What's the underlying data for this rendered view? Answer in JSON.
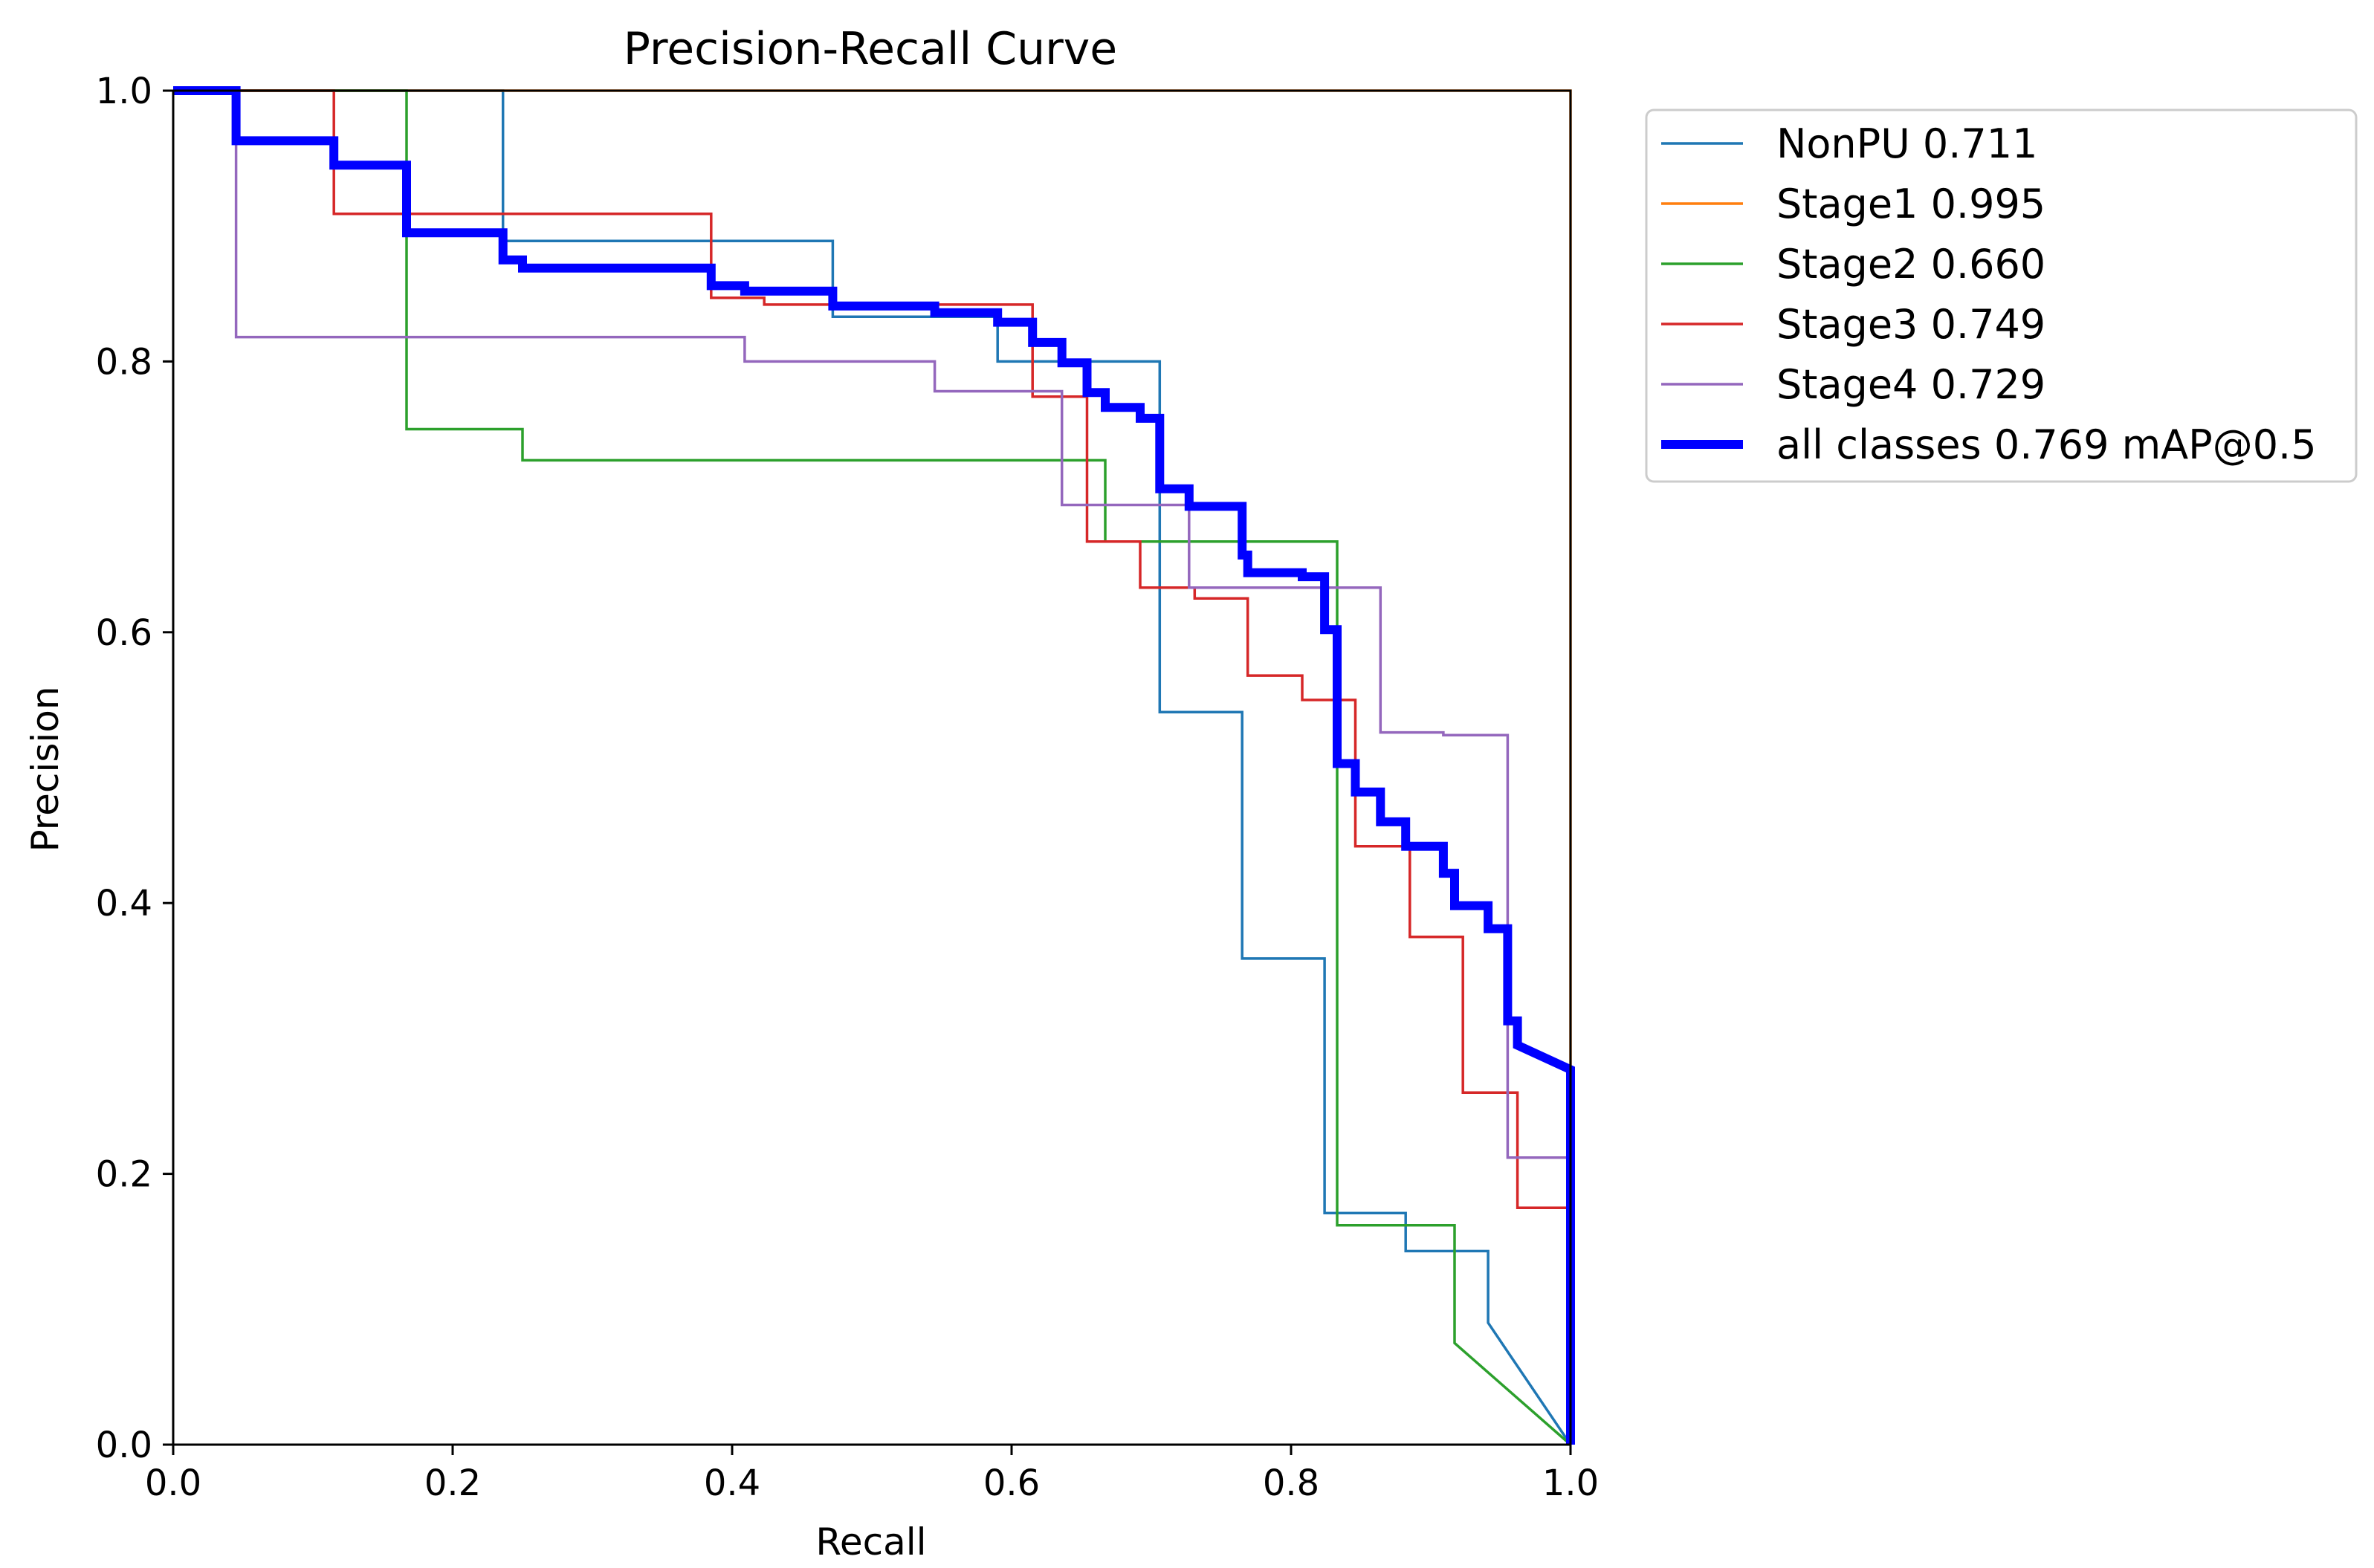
{
  "chart_data": {
    "type": "line",
    "title": "Precision-Recall Curve",
    "xlabel": "Recall",
    "ylabel": "Precision",
    "xlim": [
      0,
      1
    ],
    "ylim": [
      0,
      1
    ],
    "xticks": [
      "0.0",
      "0.2",
      "0.4",
      "0.6",
      "0.8",
      "1.0"
    ],
    "yticks": [
      "0.0",
      "0.2",
      "0.4",
      "0.6",
      "0.8",
      "1.0"
    ],
    "grid": false,
    "legend_position": "outside-top-right",
    "series": [
      {
        "name": "NonPU 0.711",
        "color": "#1f77b4",
        "width": "thin",
        "x": [
          0,
          0.236,
          0.236,
          0.236,
          0.472,
          0.472,
          0.59,
          0.59,
          0.706,
          0.706,
          0.765,
          0.765,
          0.824,
          0.824,
          0.882,
          0.882,
          0.941,
          0.941,
          1.0
        ],
        "y": [
          1.0,
          1.0,
          0.889,
          0.889,
          0.889,
          0.833,
          0.833,
          0.8,
          0.8,
          0.541,
          0.541,
          0.359,
          0.359,
          0.171,
          0.171,
          0.143,
          0.143,
          0.09,
          0.0
        ]
      },
      {
        "name": "Stage1 0.995",
        "color": "#ff7f0e",
        "width": "thin",
        "x": [
          0,
          1.0,
          1.0
        ],
        "y": [
          1.0,
          1.0,
          0.0
        ]
      },
      {
        "name": "Stage2 0.660",
        "color": "#2ca02c",
        "width": "thin",
        "x": [
          0,
          0.167,
          0.167,
          0.25,
          0.25,
          0.667,
          0.667,
          0.833,
          0.833,
          0.917,
          0.917,
          1.0
        ],
        "y": [
          1.0,
          1.0,
          0.75,
          0.75,
          0.727,
          0.727,
          0.667,
          0.667,
          0.162,
          0.162,
          0.075,
          0.0
        ]
      },
      {
        "name": "Stage3 0.749",
        "color": "#d62728",
        "width": "thin",
        "x": [
          0,
          0.115,
          0.115,
          0.385,
          0.385,
          0.423,
          0.423,
          0.615,
          0.615,
          0.654,
          0.654,
          0.692,
          0.692,
          0.731,
          0.731,
          0.769,
          0.769,
          0.808,
          0.808,
          0.846,
          0.846,
          0.885,
          0.885,
          0.923,
          0.923,
          0.962,
          0.962,
          1.0,
          1.0
        ],
        "y": [
          1.0,
          1.0,
          0.909,
          0.909,
          0.847,
          0.847,
          0.842,
          0.842,
          0.774,
          0.774,
          0.667,
          0.667,
          0.633,
          0.633,
          0.625,
          0.625,
          0.568,
          0.568,
          0.55,
          0.55,
          0.442,
          0.442,
          0.375,
          0.375,
          0.26,
          0.26,
          0.175,
          0.175,
          0.0
        ]
      },
      {
        "name": "Stage4 0.729",
        "color": "#9467bd",
        "width": "thin",
        "x": [
          0,
          0.045,
          0.045,
          0.409,
          0.409,
          0.545,
          0.545,
          0.636,
          0.636,
          0.727,
          0.727,
          0.864,
          0.864,
          0.909,
          0.909,
          0.955,
          0.955,
          1.0,
          1.0
        ],
        "y": [
          1.0,
          1.0,
          0.818,
          0.818,
          0.8,
          0.8,
          0.778,
          0.778,
          0.694,
          0.694,
          0.633,
          0.633,
          0.526,
          0.526,
          0.524,
          0.524,
          0.212,
          0.212,
          0.0
        ]
      },
      {
        "name": "all classes 0.769 mAP@0.5",
        "color": "#0000ff",
        "width": "thick",
        "x": [
          0,
          0.045,
          0.045,
          0.115,
          0.115,
          0.167,
          0.167,
          0.236,
          0.236,
          0.25,
          0.25,
          0.385,
          0.385,
          0.409,
          0.409,
          0.472,
          0.472,
          0.545,
          0.545,
          0.59,
          0.59,
          0.615,
          0.615,
          0.636,
          0.636,
          0.654,
          0.654,
          0.667,
          0.667,
          0.692,
          0.692,
          0.706,
          0.706,
          0.727,
          0.727,
          0.765,
          0.765,
          0.769,
          0.769,
          0.808,
          0.808,
          0.824,
          0.824,
          0.833,
          0.833,
          0.846,
          0.846,
          0.864,
          0.864,
          0.882,
          0.882,
          0.909,
          0.909,
          0.917,
          0.917,
          0.941,
          0.941,
          0.955,
          0.955,
          0.962,
          0.962,
          1.0,
          1.0
        ],
        "y": [
          1.0,
          1.0,
          0.963,
          0.963,
          0.945,
          0.945,
          0.895,
          0.895,
          0.875,
          0.875,
          0.869,
          0.869,
          0.856,
          0.856,
          0.852,
          0.852,
          0.841,
          0.841,
          0.836,
          0.836,
          0.829,
          0.829,
          0.814,
          0.814,
          0.799,
          0.799,
          0.777,
          0.777,
          0.766,
          0.766,
          0.758,
          0.758,
          0.706,
          0.706,
          0.693,
          0.693,
          0.657,
          0.657,
          0.644,
          0.644,
          0.641,
          0.641,
          0.602,
          0.602,
          0.503,
          0.503,
          0.482,
          0.482,
          0.46,
          0.46,
          0.442,
          0.442,
          0.422,
          0.422,
          0.398,
          0.398,
          0.381,
          0.381,
          0.313,
          0.313,
          0.295,
          0.277,
          0.0
        ]
      }
    ]
  }
}
